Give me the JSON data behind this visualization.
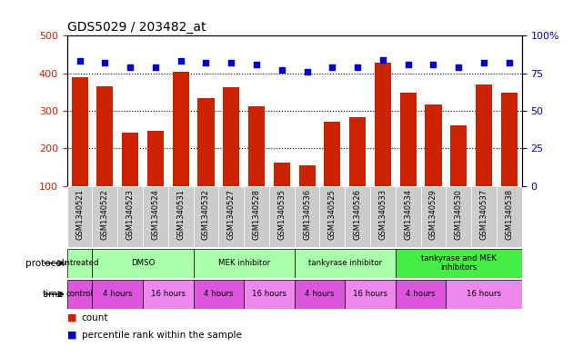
{
  "title": "GDS5029 / 203482_at",
  "samples": [
    "GSM1340521",
    "GSM1340522",
    "GSM1340523",
    "GSM1340524",
    "GSM1340531",
    "GSM1340532",
    "GSM1340527",
    "GSM1340528",
    "GSM1340535",
    "GSM1340536",
    "GSM1340525",
    "GSM1340526",
    "GSM1340533",
    "GSM1340534",
    "GSM1340529",
    "GSM1340530",
    "GSM1340537",
    "GSM1340538"
  ],
  "counts": [
    390,
    365,
    242,
    248,
    403,
    335,
    362,
    312,
    163,
    155,
    270,
    282,
    427,
    348,
    317,
    262,
    370,
    348
  ],
  "percentiles": [
    83,
    82,
    79,
    79,
    83,
    82,
    82,
    81,
    77,
    76,
    79,
    79,
    84,
    81,
    81,
    79,
    82,
    82
  ],
  "ylim_left": [
    100,
    500
  ],
  "ylim_right": [
    0,
    100
  ],
  "yticks_left": [
    100,
    200,
    300,
    400,
    500
  ],
  "yticks_right": [
    0,
    25,
    50,
    75,
    100
  ],
  "bar_color": "#cc2200",
  "dot_color": "#0000cc",
  "background_color": "#ffffff",
  "label_color_left": "#cc2200",
  "label_color_right": "#0000cc",
  "tick_label_bg": "#cccccc",
  "protocol_groups": [
    {
      "label": "untreated",
      "start": 0,
      "end": 0,
      "color": "#aaffaa"
    },
    {
      "label": "DMSO",
      "start": 1,
      "end": 4,
      "color": "#aaffaa"
    },
    {
      "label": "MEK inhibitor",
      "start": 5,
      "end": 8,
      "color": "#aaffaa"
    },
    {
      "label": "tankyrase inhibitor",
      "start": 9,
      "end": 12,
      "color": "#aaffaa"
    },
    {
      "label": "tankyrase and MEK\ninhibitors",
      "start": 13,
      "end": 17,
      "color": "#44ee44"
    }
  ],
  "time_groups": [
    {
      "label": "control",
      "start": 0,
      "end": 0,
      "color": "#dd55dd"
    },
    {
      "label": "4 hours",
      "start": 1,
      "end": 2,
      "color": "#dd55dd"
    },
    {
      "label": "16 hours",
      "start": 3,
      "end": 4,
      "color": "#ee88ee"
    },
    {
      "label": "4 hours",
      "start": 5,
      "end": 6,
      "color": "#dd55dd"
    },
    {
      "label": "16 hours",
      "start": 7,
      "end": 8,
      "color": "#ee88ee"
    },
    {
      "label": "4 hours",
      "start": 9,
      "end": 10,
      "color": "#dd55dd"
    },
    {
      "label": "16 hours",
      "start": 11,
      "end": 12,
      "color": "#ee88ee"
    },
    {
      "label": "4 hours",
      "start": 13,
      "end": 14,
      "color": "#dd55dd"
    },
    {
      "label": "16 hours",
      "start": 15,
      "end": 17,
      "color": "#ee88ee"
    }
  ]
}
